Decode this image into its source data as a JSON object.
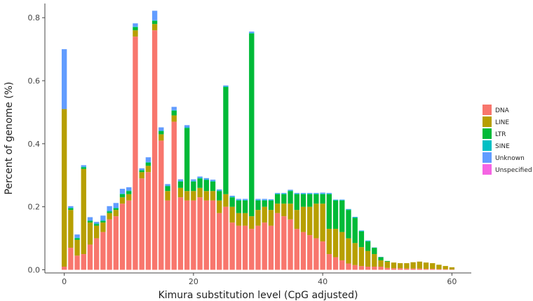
{
  "chart_data": {
    "type": "bar",
    "stacked": true,
    "xlabel": "Kimura substitution level (CpG adjusted)",
    "ylabel": "Percent of genome (%)",
    "xlim": [
      -3,
      63
    ],
    "ylim": [
      -0.01,
      0.845
    ],
    "xticks": [
      0,
      20,
      40,
      60
    ],
    "yticks": [
      0.0,
      0.2,
      0.4,
      0.6,
      0.8
    ],
    "legend_position": "right",
    "categories": [
      0,
      1,
      2,
      3,
      4,
      5,
      6,
      7,
      8,
      9,
      10,
      11,
      12,
      13,
      14,
      15,
      16,
      17,
      18,
      19,
      20,
      21,
      22,
      23,
      24,
      25,
      26,
      27,
      28,
      29,
      30,
      31,
      32,
      33,
      34,
      35,
      36,
      37,
      38,
      39,
      40,
      41,
      42,
      43,
      44,
      45,
      46,
      47,
      48,
      49,
      50,
      51,
      52,
      53,
      54,
      55,
      56,
      57,
      58,
      59,
      60
    ],
    "series": [
      {
        "name": "DNA",
        "color": "#F8766D",
        "values": [
          0.01,
          0.07,
          0.045,
          0.05,
          0.08,
          0.1,
          0.12,
          0.16,
          0.17,
          0.21,
          0.22,
          0.74,
          0.29,
          0.31,
          0.76,
          0.41,
          0.22,
          0.47,
          0.23,
          0.22,
          0.22,
          0.23,
          0.22,
          0.22,
          0.18,
          0.2,
          0.15,
          0.14,
          0.14,
          0.13,
          0.14,
          0.15,
          0.14,
          0.18,
          0.17,
          0.16,
          0.13,
          0.12,
          0.11,
          0.1,
          0.09,
          0.05,
          0.04,
          0.03,
          0.02,
          0.015,
          0.012,
          0.01,
          0.01,
          0.01,
          0.006,
          0.005,
          0.005,
          0.004,
          0.004,
          0.004,
          0.003,
          0.003,
          0.002,
          0.002,
          0.001
        ]
      },
      {
        "name": "LINE",
        "color": "#B79F00",
        "values": [
          0.5,
          0.12,
          0.05,
          0.27,
          0.07,
          0.04,
          0.03,
          0.02,
          0.02,
          0.02,
          0.02,
          0.02,
          0.02,
          0.02,
          0.02,
          0.02,
          0.03,
          0.02,
          0.03,
          0.03,
          0.03,
          0.03,
          0.03,
          0.03,
          0.04,
          0.04,
          0.05,
          0.04,
          0.04,
          0.04,
          0.05,
          0.05,
          0.05,
          0.03,
          0.04,
          0.05,
          0.06,
          0.08,
          0.09,
          0.11,
          0.12,
          0.08,
          0.09,
          0.09,
          0.08,
          0.07,
          0.06,
          0.05,
          0.04,
          0.02,
          0.02,
          0.018,
          0.016,
          0.017,
          0.02,
          0.022,
          0.02,
          0.018,
          0.014,
          0.01,
          0.007
        ]
      },
      {
        "name": "LTR",
        "color": "#00BA38",
        "values": [
          0.0,
          0.005,
          0.005,
          0.005,
          0.005,
          0.005,
          0.005,
          0.005,
          0.005,
          0.01,
          0.01,
          0.01,
          0.005,
          0.01,
          0.01,
          0.01,
          0.015,
          0.015,
          0.02,
          0.2,
          0.03,
          0.03,
          0.035,
          0.03,
          0.03,
          0.34,
          0.03,
          0.04,
          0.04,
          0.58,
          0.03,
          0.02,
          0.03,
          0.03,
          0.03,
          0.04,
          0.05,
          0.04,
          0.04,
          0.03,
          0.03,
          0.11,
          0.09,
          0.1,
          0.09,
          0.08,
          0.05,
          0.03,
          0.02,
          0.01,
          0.002,
          0.0,
          0.0,
          0.0,
          0.0,
          0.0,
          0.0,
          0.0,
          0.0,
          0.0,
          0.0
        ]
      },
      {
        "name": "SINE",
        "color": "#00BFC4",
        "values": [
          0.0,
          0.002,
          0.002,
          0.002,
          0.002,
          0.002,
          0.002,
          0.002,
          0.002,
          0.002,
          0.002,
          0.002,
          0.002,
          0.002,
          0.002,
          0.002,
          0.002,
          0.002,
          0.002,
          0.002,
          0.002,
          0.002,
          0.002,
          0.002,
          0.002,
          0.002,
          0.002,
          0.002,
          0.002,
          0.002,
          0.002,
          0.002,
          0.002,
          0.002,
          0.002,
          0.002,
          0.002,
          0.002,
          0.002,
          0.002,
          0.002,
          0.002,
          0.002,
          0.002,
          0.002,
          0.002,
          0.002,
          0.002,
          0.0,
          0.0,
          0.0,
          0.0,
          0.0,
          0.0,
          0.0,
          0.0,
          0.0,
          0.0,
          0.0,
          0.0,
          0.0
        ]
      },
      {
        "name": "Unknown",
        "color": "#619CFF",
        "values": [
          0.19,
          0.005,
          0.01,
          0.005,
          0.01,
          0.005,
          0.015,
          0.015,
          0.015,
          0.015,
          0.01,
          0.01,
          0.005,
          0.015,
          0.03,
          0.01,
          0.005,
          0.01,
          0.005,
          0.007,
          0.005,
          0.004,
          0.004,
          0.004,
          0.003,
          0.003,
          0.003,
          0.003,
          0.003,
          0.004,
          0.003,
          0.003,
          0.002,
          0.002,
          0.002,
          0.002,
          0.002,
          0.002,
          0.002,
          0.002,
          0.003,
          0.002,
          0.001,
          0.001,
          0.001,
          0.001,
          0.001,
          0.001,
          0.001,
          0.001,
          0.0,
          0.0,
          0.0,
          0.0,
          0.0,
          0.0,
          0.0,
          0.0,
          0.0,
          0.0,
          0.0
        ]
      },
      {
        "name": "Unspecified",
        "color": "#F564E3",
        "values": [
          0.0,
          0.0,
          0.0,
          0.0,
          0.0,
          0.0,
          0.0,
          0.0,
          0.0,
          0.0,
          0.0,
          0.0,
          0.0,
          0.0,
          0.0,
          0.0,
          0.0,
          0.0,
          0.0,
          0.0,
          0.0,
          0.0,
          0.0,
          0.0,
          0.0,
          0.0,
          0.0,
          0.0,
          0.0,
          0.0,
          0.0,
          0.0,
          0.0,
          0.0,
          0.0,
          0.0,
          0.0,
          0.0,
          0.0,
          0.0,
          0.0,
          0.0,
          0.0,
          0.0,
          0.0,
          0.0,
          0.0,
          0.0,
          0.0,
          0.0,
          0.0,
          0.0,
          0.0,
          0.0,
          0.0,
          0.0,
          0.0,
          0.0,
          0.0,
          0.0,
          0.0
        ]
      }
    ]
  }
}
